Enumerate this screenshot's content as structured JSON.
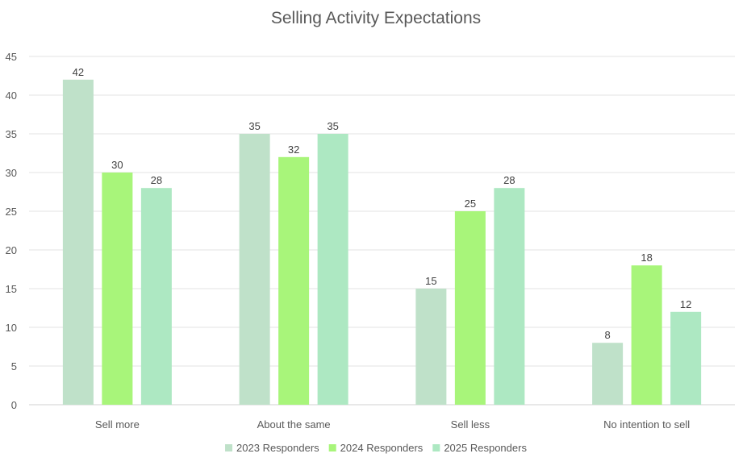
{
  "chart_data": {
    "type": "bar",
    "title": "Selling Activity Expectations",
    "xlabel": "",
    "ylabel": "",
    "ylim": [
      0,
      45
    ],
    "yticks": [
      0,
      5,
      10,
      15,
      20,
      25,
      30,
      35,
      40,
      45
    ],
    "grid": true,
    "legend_position": "bottom",
    "categories": [
      "Sell more",
      "About the same",
      "Sell less",
      "No intention to sell"
    ],
    "series": [
      {
        "name": "2023 Responders",
        "color": "#bfe1c9",
        "values": [
          42,
          35,
          15,
          8
        ]
      },
      {
        "name": "2024 Responders",
        "color": "#a8f57a",
        "values": [
          30,
          32,
          25,
          18
        ]
      },
      {
        "name": "2025 Responders",
        "color": "#ade8c2",
        "values": [
          28,
          35,
          28,
          12
        ]
      }
    ]
  }
}
